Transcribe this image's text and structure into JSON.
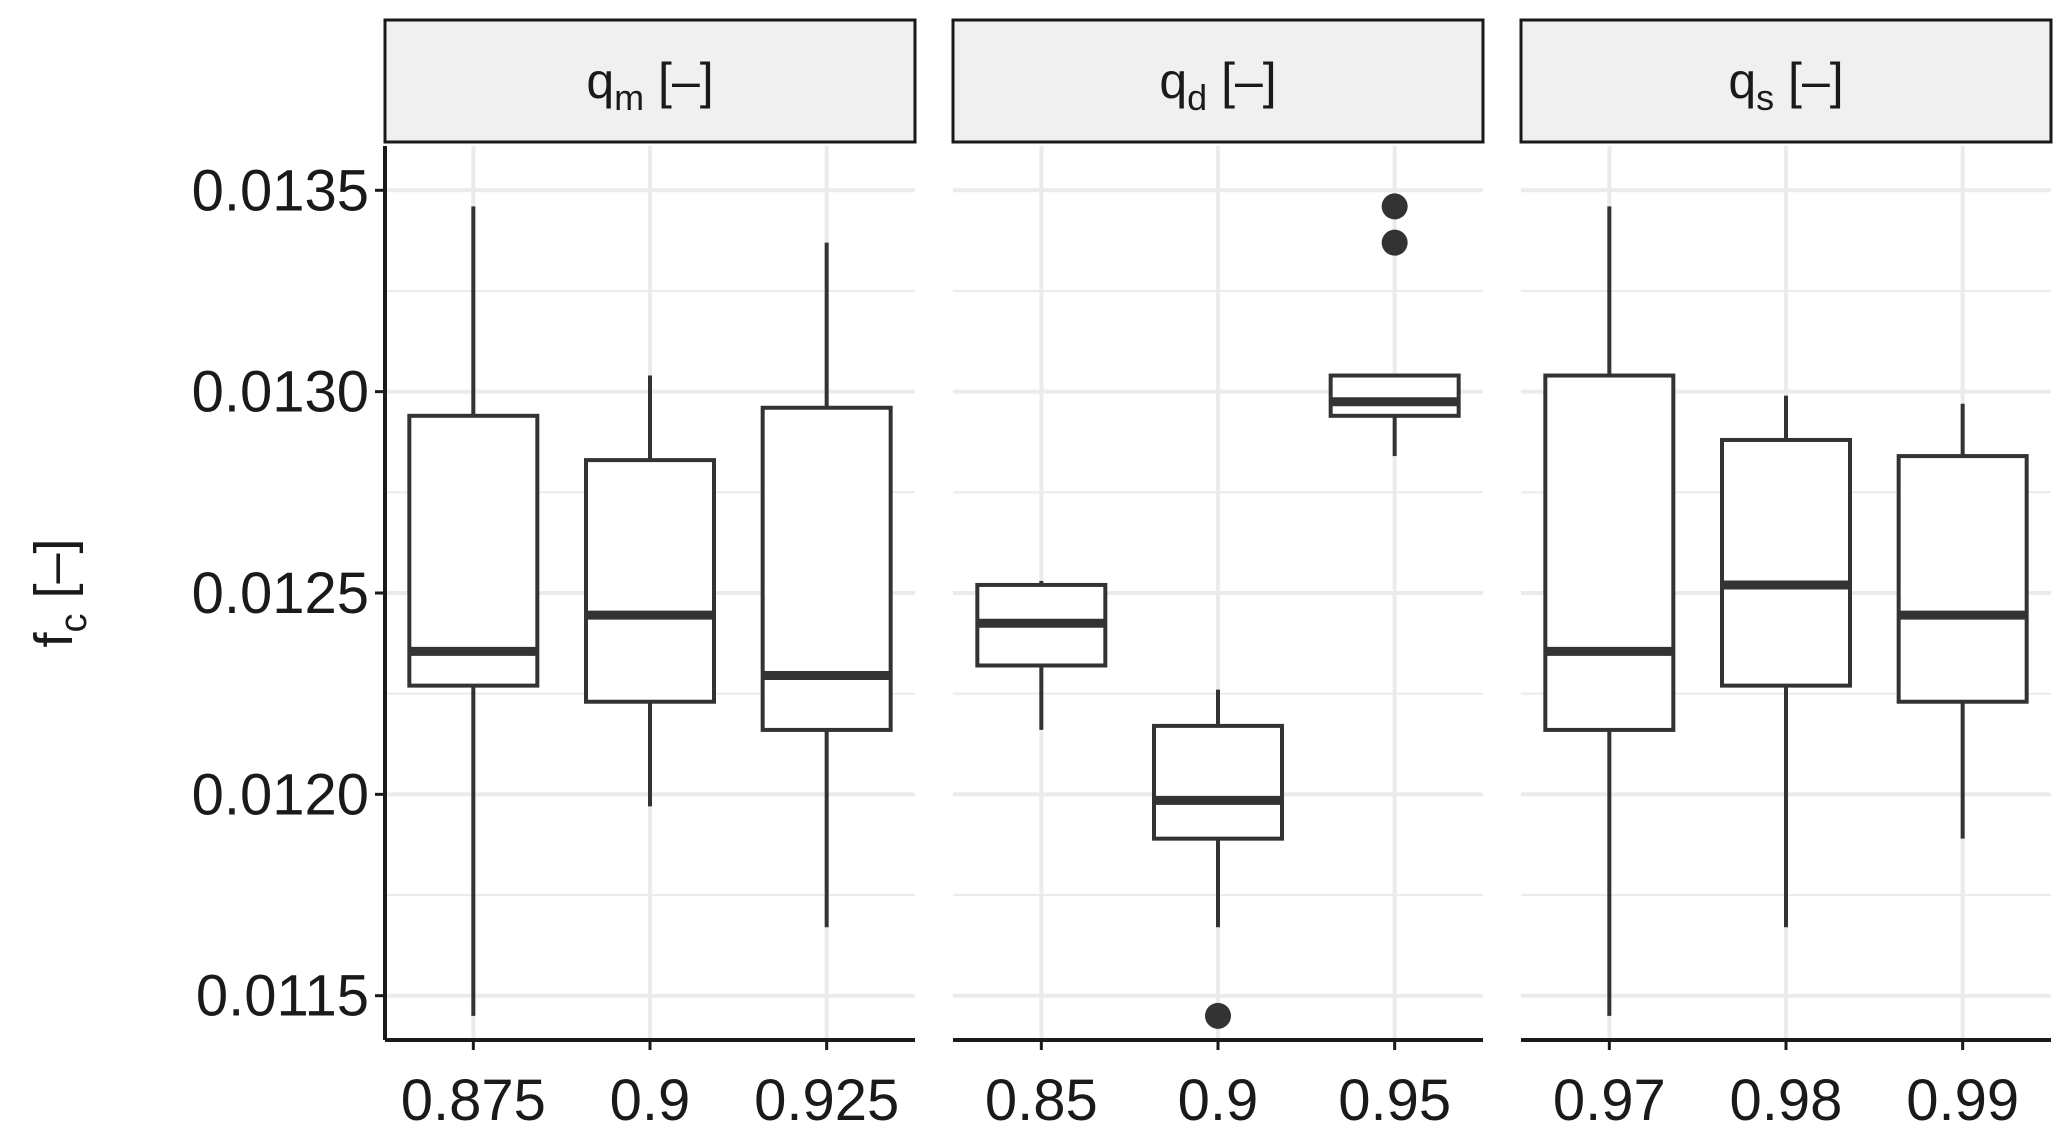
{
  "chart_data": {
    "type": "boxplot",
    "ylabel": "f",
    "ylabel_subscript": "c",
    "ylabel_unit": "[–]",
    "ylim": [
      0.01139,
      0.01361
    ],
    "y_ticks": [
      "0.0115",
      "0.0120",
      "0.0125",
      "0.0130",
      "0.0135"
    ],
    "y_tick_values": [
      0.0115,
      0.012,
      0.0125,
      0.013,
      0.0135
    ],
    "y_minor_values": [
      0.01175,
      0.01225,
      0.01275,
      0.01325
    ],
    "grid": true,
    "panels": [
      {
        "strip_main": "q",
        "strip_sub": "m",
        "strip_unit": "[–]",
        "categories": [
          "0.875",
          "0.9",
          "0.925"
        ],
        "boxes": [
          {
            "low": 0.01145,
            "q1": 0.01227,
            "median": 0.012355,
            "q3": 0.01294,
            "high": 0.01346,
            "outliers": []
          },
          {
            "low": 0.01197,
            "q1": 0.01223,
            "median": 0.012445,
            "q3": 0.01283,
            "high": 0.01304,
            "outliers": []
          },
          {
            "low": 0.01167,
            "q1": 0.01216,
            "median": 0.012295,
            "q3": 0.01296,
            "high": 0.01337,
            "outliers": []
          }
        ]
      },
      {
        "strip_main": "q",
        "strip_sub": "d",
        "strip_unit": "[–]",
        "categories": [
          "0.85",
          "0.9",
          "0.95"
        ],
        "boxes": [
          {
            "low": 0.01216,
            "q1": 0.01232,
            "median": 0.012425,
            "q3": 0.01252,
            "high": 0.01253,
            "outliers": []
          },
          {
            "low": 0.01167,
            "q1": 0.01189,
            "median": 0.011985,
            "q3": 0.01217,
            "high": 0.01226,
            "outliers": [
              0.01145
            ]
          },
          {
            "low": 0.01284,
            "q1": 0.01294,
            "median": 0.012975,
            "q3": 0.01304,
            "high": 0.01304,
            "outliers": [
              0.01337,
              0.01346
            ]
          }
        ]
      },
      {
        "strip_main": "q",
        "strip_sub": "s",
        "strip_unit": "[–]",
        "categories": [
          "0.97",
          "0.98",
          "0.99"
        ],
        "boxes": [
          {
            "low": 0.01145,
            "q1": 0.01216,
            "median": 0.012355,
            "q3": 0.01304,
            "high": 0.01346,
            "outliers": []
          },
          {
            "low": 0.01167,
            "q1": 0.01227,
            "median": 0.01252,
            "q3": 0.01288,
            "high": 0.01299,
            "outliers": []
          },
          {
            "low": 0.01189,
            "q1": 0.01223,
            "median": 0.012445,
            "q3": 0.01284,
            "high": 0.01297,
            "outliers": []
          }
        ]
      }
    ]
  }
}
